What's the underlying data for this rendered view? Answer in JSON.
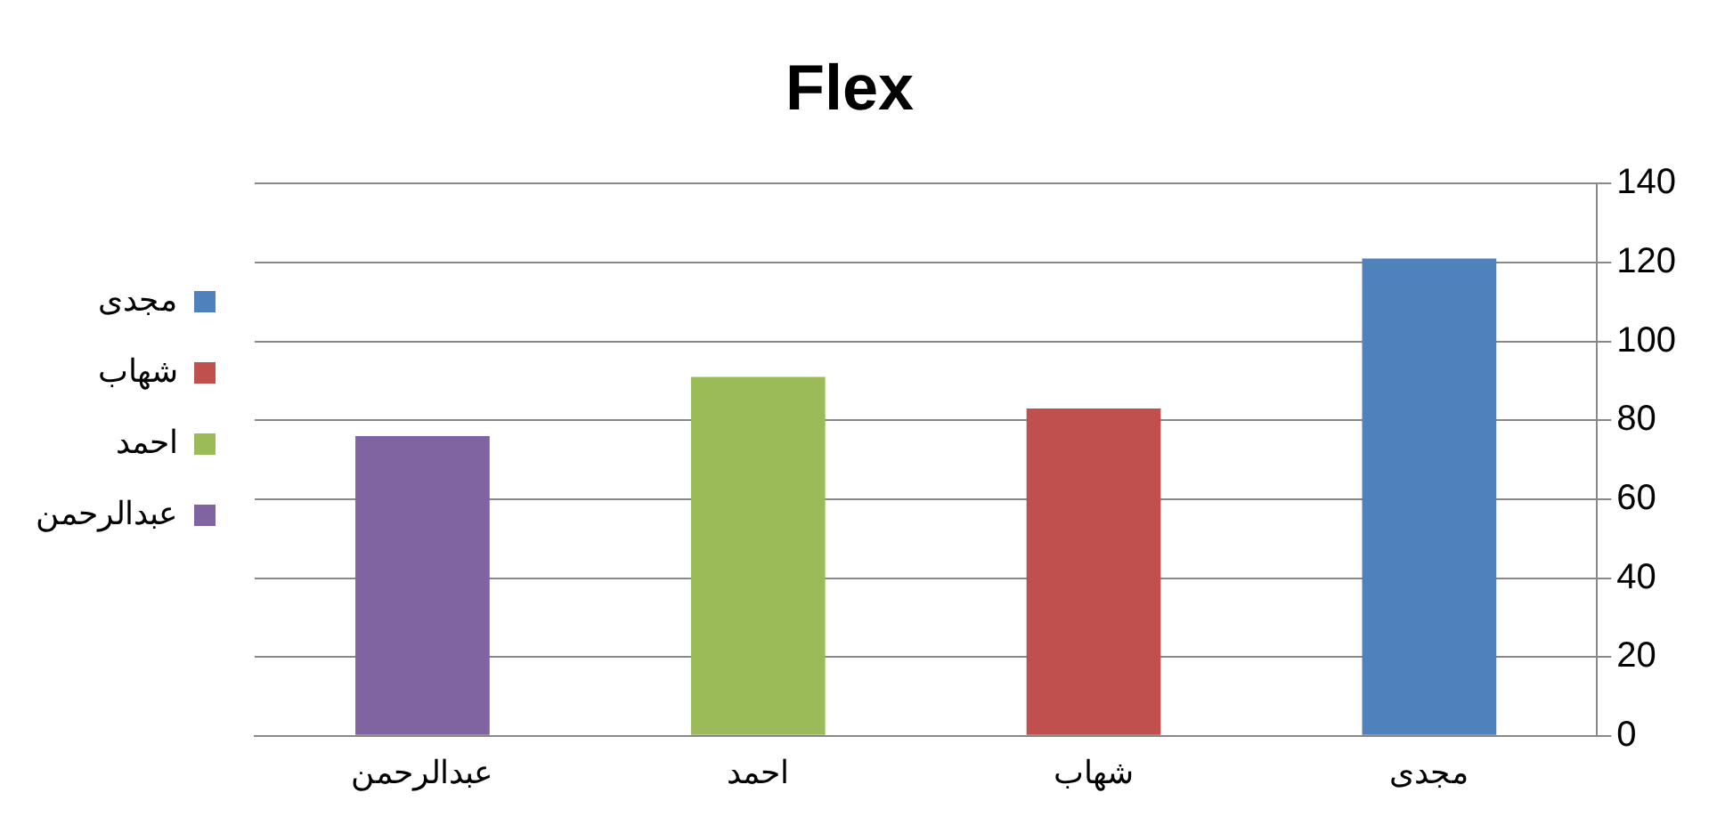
{
  "chart_data": {
    "type": "bar",
    "title": "Flex",
    "categories": [
      "عبدالرحمن",
      "احمد",
      "شهاب",
      "مجدى"
    ],
    "series": [
      {
        "name": "مجدى",
        "color": "#4f81bd",
        "values": [
          null,
          null,
          null,
          121
        ]
      },
      {
        "name": "شهاب",
        "color": "#c0504d",
        "values": [
          null,
          null,
          83,
          null
        ]
      },
      {
        "name": "احمد",
        "color": "#9bbb59",
        "values": [
          null,
          91,
          null,
          null
        ]
      },
      {
        "name": "عبدالرحمن",
        "color": "#8064a2",
        "values": [
          76,
          null,
          null,
          null
        ]
      }
    ],
    "ylim": [
      0,
      140
    ],
    "yticks": [
      0,
      20,
      40,
      60,
      80,
      100,
      120,
      140
    ],
    "grid": "y",
    "legend": "left"
  }
}
